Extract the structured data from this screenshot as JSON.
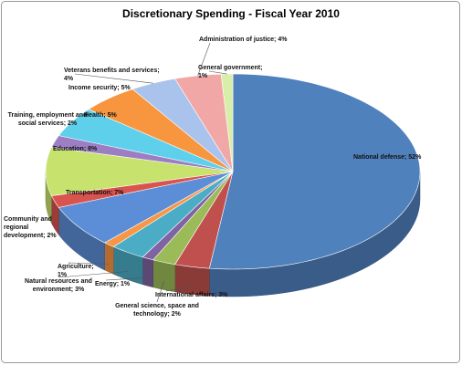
{
  "chart_data": {
    "type": "pie",
    "title": "Discretionary Spending - Fiscal Year 2010",
    "categories": [
      "National defense; 52%",
      "International affairs; 3%",
      "General science, space and technology; 2%",
      "Energy; 1%",
      "Natural resources and environment; 3%",
      "Agriculture; 1%",
      "Transportation; 7%",
      "Community and regional development; 2%",
      "Education; 8%",
      "Training, employment and social services; 2%",
      "Health; 5%",
      "Income security; 5%",
      "Veterans benefits and services; 4%",
      "Administration of justice; 4%",
      "General government; 1%"
    ],
    "values": [
      52,
      3,
      2,
      1,
      3,
      1,
      7,
      2,
      8,
      2,
      5,
      5,
      4,
      4,
      1
    ],
    "colors": [
      "#4f81bd",
      "#c0504d",
      "#9bbb59",
      "#8064a2",
      "#4bacc6",
      "#f79646",
      "#5b8ed6",
      "#d9534f",
      "#c8e26e",
      "#9b7fc2",
      "#5fd0ec",
      "#f7963f",
      "#a9c3ec",
      "#f2a7a7",
      "#d8efa8"
    ]
  }
}
